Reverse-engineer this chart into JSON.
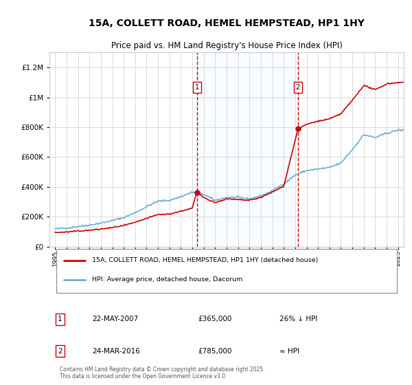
{
  "title": "15A, COLLETT ROAD, HEMEL HEMPSTEAD, HP1 1HY",
  "subtitle": "Price paid vs. HM Land Registry's House Price Index (HPI)",
  "legend_line1": "15A, COLLETT ROAD, HEMEL HEMPSTEAD, HP1 1HY (detached house)",
  "legend_line2": "HPI: Average price, detached house, Dacorum",
  "footnote": "Contains HM Land Registry data © Crown copyright and database right 2025.\nThis data is licensed under the Open Government Licence v3.0.",
  "transaction1_date": "22-MAY-2007",
  "transaction1_price": 365000,
  "transaction1_note": "26% ↓ HPI",
  "transaction2_date": "24-MAR-2016",
  "transaction2_price": 785000,
  "transaction2_note": "≈ HPI",
  "marker1_x": 2007.39,
  "marker2_x": 2016.23,
  "hpi_color": "#6baed6",
  "price_color": "#cc0000",
  "shade_color": "#ddeeff",
  "marker_box_color": "#cc0000",
  "ylim": [
    0,
    1300000
  ],
  "xlim_start": 1995,
  "xlim_end": 2025.5,
  "yticks": [
    0,
    200000,
    400000,
    600000,
    800000,
    1000000,
    1200000
  ],
  "xticks": [
    1995,
    1996,
    1997,
    1998,
    1999,
    2000,
    2001,
    2002,
    2003,
    2004,
    2005,
    2006,
    2007,
    2008,
    2009,
    2010,
    2011,
    2012,
    2013,
    2014,
    2015,
    2016,
    2017,
    2018,
    2019,
    2020,
    2021,
    2022,
    2023,
    2024,
    2025
  ]
}
